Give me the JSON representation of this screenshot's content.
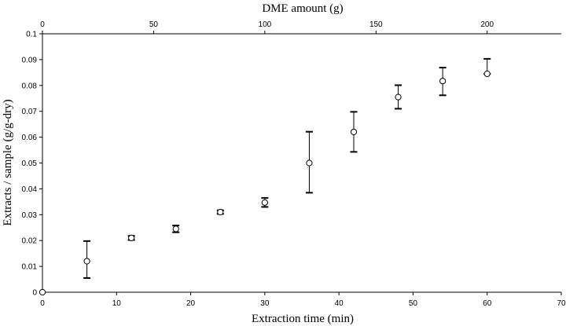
{
  "chart_data": {
    "type": "scatter",
    "xlabel": "Extraction time (min)",
    "x2label": "DME amount (g)",
    "ylabel": "Extracts / sample (g/g-dry)",
    "xlim": [
      0,
      70
    ],
    "x2lim": [
      0,
      233.33
    ],
    "ylim": [
      0,
      0.1
    ],
    "x_ticks": [
      0,
      10,
      20,
      30,
      40,
      50,
      60,
      70
    ],
    "x2_ticks": [
      0,
      50,
      100,
      150,
      200
    ],
    "y_ticks": [
      0,
      0.01,
      0.02,
      0.03,
      0.04,
      0.05,
      0.06,
      0.07,
      0.08,
      0.09,
      0.1
    ],
    "grid": false,
    "points": [
      {
        "x": 0,
        "y": 0,
        "err_low": 0,
        "err_high": 0
      },
      {
        "x": 6,
        "y": 0.012,
        "err_low": 0.0055,
        "err_high": 0.0198
      },
      {
        "x": 12,
        "y": 0.021,
        "err_low": 0.0202,
        "err_high": 0.0218
      },
      {
        "x": 18,
        "y": 0.0245,
        "err_low": 0.0232,
        "err_high": 0.0258
      },
      {
        "x": 24,
        "y": 0.031,
        "err_low": 0.0303,
        "err_high": 0.0317
      },
      {
        "x": 30,
        "y": 0.0347,
        "err_low": 0.033,
        "err_high": 0.0365
      },
      {
        "x": 36,
        "y": 0.05,
        "err_low": 0.0385,
        "err_high": 0.0621
      },
      {
        "x": 42,
        "y": 0.062,
        "err_low": 0.0543,
        "err_high": 0.0698
      },
      {
        "x": 48,
        "y": 0.0755,
        "err_low": 0.071,
        "err_high": 0.0801
      },
      {
        "x": 54,
        "y": 0.0817,
        "err_low": 0.0762,
        "err_high": 0.0869
      },
      {
        "x": 60,
        "y": 0.0845,
        "err_low": 0.0845,
        "err_high": 0.0903
      }
    ]
  }
}
